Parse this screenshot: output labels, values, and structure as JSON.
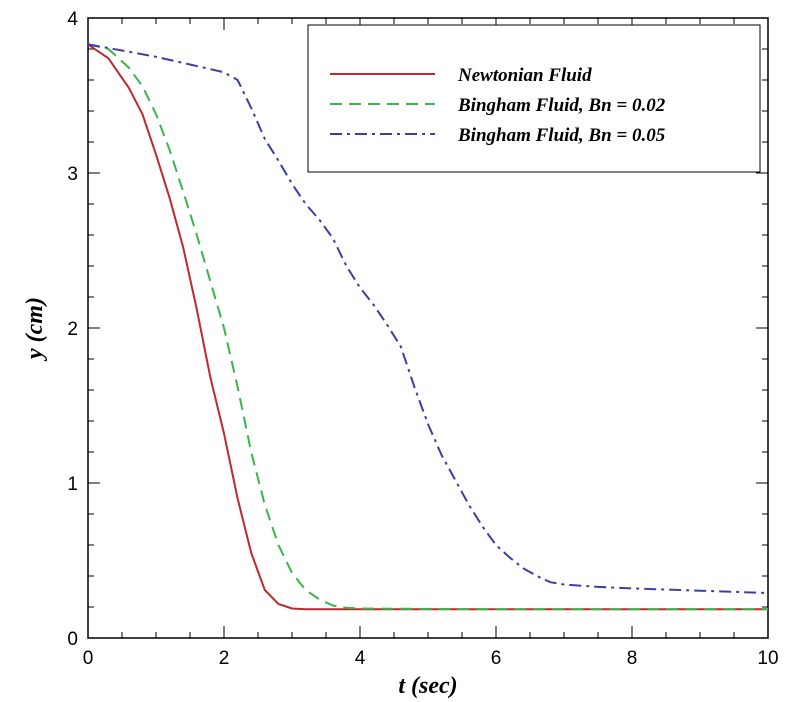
{
  "chart_data": {
    "type": "line",
    "xlabel": "t (sec)",
    "ylabel": "y (cm)",
    "xlim": [
      0,
      10
    ],
    "ylim": [
      0,
      4
    ],
    "x_ticks": [
      "0",
      "2",
      "4",
      "6",
      "8",
      "10"
    ],
    "y_ticks": [
      "0",
      "1",
      "2",
      "3",
      "4"
    ],
    "grid": false,
    "legend_position": "top-right",
    "series": [
      {
        "name": "Newtonian Fluid",
        "color": "#c0282d",
        "dash": "solid",
        "points": [
          [
            0,
            3.83
          ],
          [
            0.3,
            3.74
          ],
          [
            0.6,
            3.55
          ],
          [
            0.8,
            3.38
          ],
          [
            1.0,
            3.12
          ],
          [
            1.2,
            2.84
          ],
          [
            1.4,
            2.52
          ],
          [
            1.6,
            2.12
          ],
          [
            1.8,
            1.68
          ],
          [
            2.0,
            1.32
          ],
          [
            2.2,
            0.9
          ],
          [
            2.4,
            0.55
          ],
          [
            2.6,
            0.31
          ],
          [
            2.8,
            0.22
          ],
          [
            3.0,
            0.19
          ],
          [
            3.2,
            0.185
          ],
          [
            4.0,
            0.185
          ],
          [
            6.0,
            0.185
          ],
          [
            8.0,
            0.185
          ],
          [
            10.0,
            0.185
          ]
        ]
      },
      {
        "name": "Bingham Fluid, Bn = 0.02",
        "color": "#3ab54a",
        "dash": "dash",
        "points": [
          [
            0,
            3.83
          ],
          [
            0.3,
            3.8
          ],
          [
            0.6,
            3.68
          ],
          [
            0.8,
            3.56
          ],
          [
            1.0,
            3.38
          ],
          [
            1.2,
            3.15
          ],
          [
            1.4,
            2.88
          ],
          [
            1.6,
            2.6
          ],
          [
            1.8,
            2.3
          ],
          [
            2.0,
            2.0
          ],
          [
            2.2,
            1.62
          ],
          [
            2.4,
            1.2
          ],
          [
            2.6,
            0.86
          ],
          [
            2.8,
            0.6
          ],
          [
            3.0,
            0.42
          ],
          [
            3.2,
            0.31
          ],
          [
            3.4,
            0.25
          ],
          [
            3.6,
            0.21
          ],
          [
            3.8,
            0.195
          ],
          [
            4.0,
            0.19
          ],
          [
            6.0,
            0.185
          ],
          [
            8.0,
            0.185
          ],
          [
            10.0,
            0.185
          ]
        ]
      },
      {
        "name": "Bingham Fluid, Bn = 0.05",
        "color": "#3b3fa3",
        "dash": "dashdot",
        "points": [
          [
            0,
            3.83
          ],
          [
            0.5,
            3.79
          ],
          [
            1.0,
            3.75
          ],
          [
            1.5,
            3.7
          ],
          [
            2.0,
            3.65
          ],
          [
            2.2,
            3.6
          ],
          [
            2.4,
            3.42
          ],
          [
            2.6,
            3.22
          ],
          [
            2.8,
            3.08
          ],
          [
            3.0,
            2.93
          ],
          [
            3.2,
            2.8
          ],
          [
            3.4,
            2.7
          ],
          [
            3.6,
            2.58
          ],
          [
            3.8,
            2.4
          ],
          [
            4.0,
            2.26
          ],
          [
            4.2,
            2.15
          ],
          [
            4.4,
            2.02
          ],
          [
            4.6,
            1.88
          ],
          [
            4.8,
            1.62
          ],
          [
            5.0,
            1.38
          ],
          [
            5.2,
            1.18
          ],
          [
            5.4,
            1.02
          ],
          [
            5.6,
            0.86
          ],
          [
            5.8,
            0.72
          ],
          [
            6.0,
            0.6
          ],
          [
            6.2,
            0.52
          ],
          [
            6.4,
            0.45
          ],
          [
            6.6,
            0.4
          ],
          [
            6.8,
            0.36
          ],
          [
            7.0,
            0.345
          ],
          [
            7.5,
            0.33
          ],
          [
            8.0,
            0.32
          ],
          [
            9.0,
            0.305
          ],
          [
            10.0,
            0.29
          ]
        ]
      }
    ]
  }
}
